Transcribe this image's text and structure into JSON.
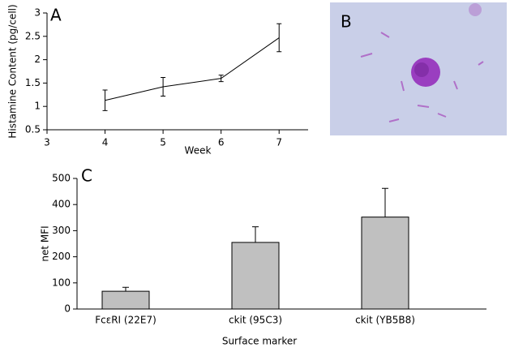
{
  "chart_data": [
    {
      "type": "line",
      "label": "A",
      "x_label": "Week",
      "y_label": "Histamine Content (pg/cell)",
      "x": [
        4,
        5,
        6,
        7
      ],
      "series": [
        {
          "color": "#000000",
          "values": [
            1.13,
            1.42,
            1.6,
            2.47
          ],
          "errors": [
            0.22,
            0.2,
            0.07,
            0.3
          ]
        }
      ],
      "xlim": [
        3,
        7.5
      ],
      "xticks": [
        3,
        4,
        5,
        6,
        7
      ],
      "ylim": [
        0.5,
        3
      ],
      "yticks": [
        0.5,
        1,
        1.5,
        2,
        2.5,
        3
      ]
    },
    {
      "type": "bar",
      "label": "C",
      "x_label": "Surface marker",
      "y_label": "net MFI",
      "categories": [
        "FcεRI (22E7)",
        "ckit (95C3)",
        "ckit (YB5B8)"
      ],
      "values": [
        68,
        255,
        352
      ],
      "errors": [
        15,
        60,
        110
      ],
      "color": "#c0c0c0",
      "ylim": [
        0,
        500
      ],
      "yticks": [
        0,
        100,
        200,
        300,
        400,
        500
      ]
    }
  ],
  "image_panel": {
    "label": "B"
  }
}
